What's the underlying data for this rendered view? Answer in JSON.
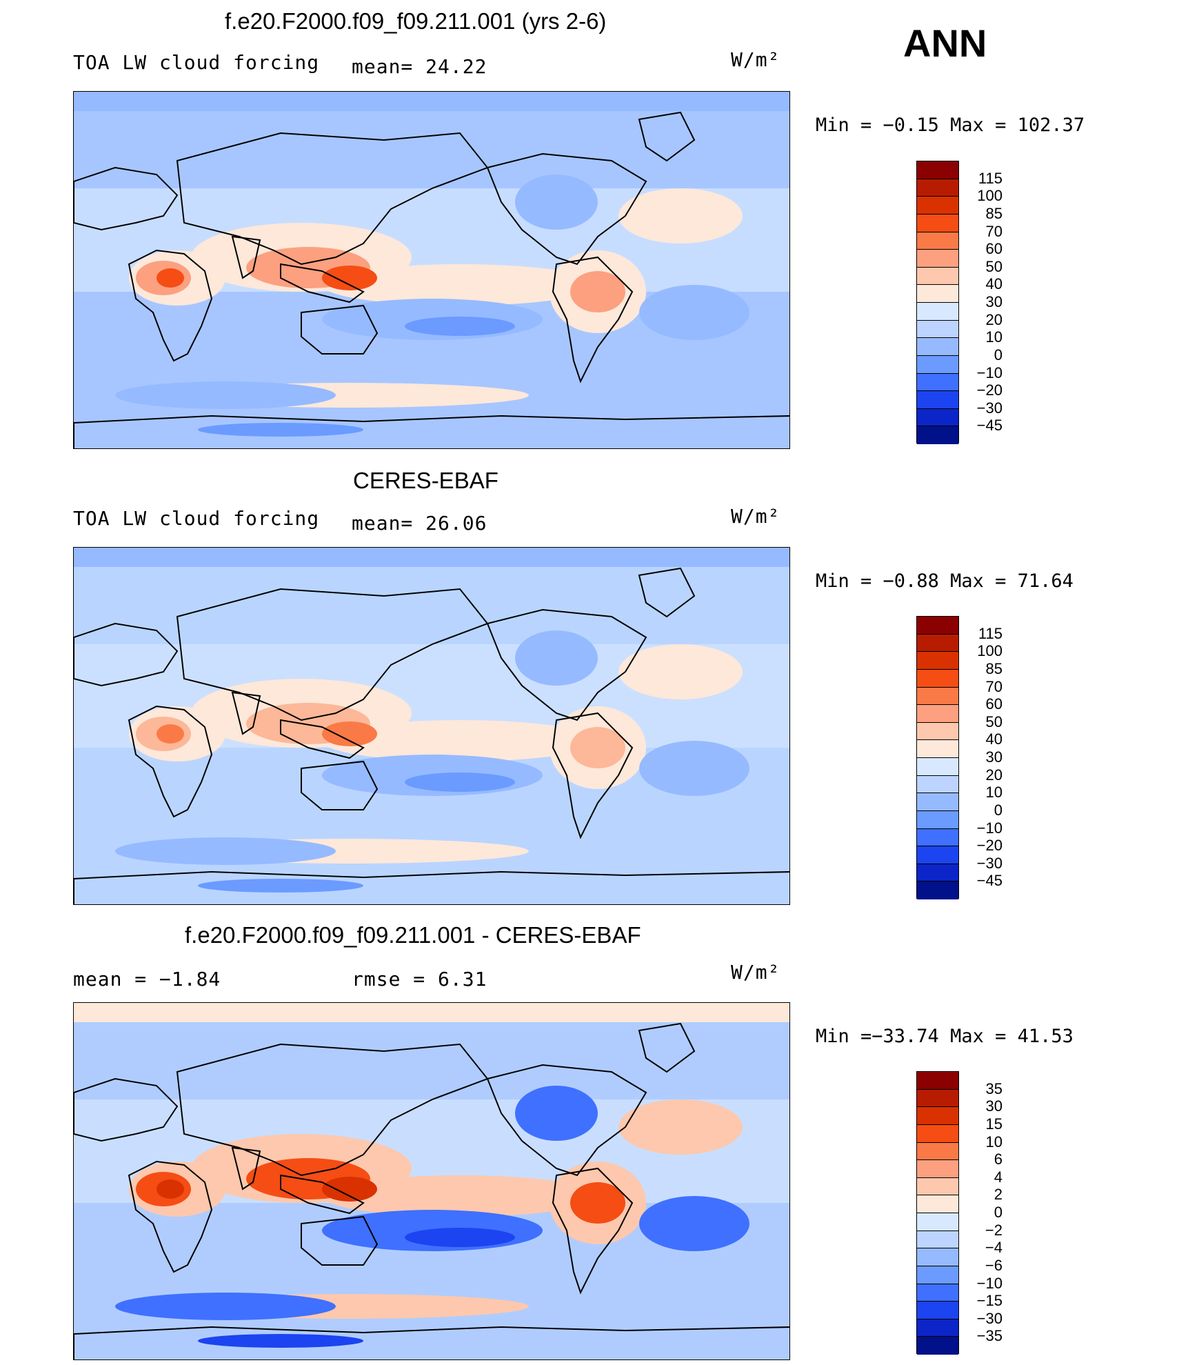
{
  "season": "ANN",
  "units": "W/m²",
  "panels": [
    {
      "title": "f.e20.F2000.f09_f09.211.001 (yrs 2-6)",
      "left_label": "TOA LW cloud forcing",
      "stat1": "mean=   24.22",
      "stat2": "",
      "units": "W/m²",
      "min_label": "Min  =",
      "min_value": "−0.15",
      "max_label": "Max  =",
      "max_value": "102.37",
      "colorbar_levels": [
        "115",
        "100",
        "85",
        "70",
        "60",
        "50",
        "40",
        "30",
        "20",
        "10",
        "0",
        "−10",
        "−20",
        "−30",
        "−45"
      ],
      "colorbar_colors": [
        "#8b0000",
        "#b81c00",
        "#d93200",
        "#f54d14",
        "#fa7a47",
        "#fca080",
        "#fdc8ad",
        "#fde8da",
        "#d8e9ff",
        "#bcd4ff",
        "#96baff",
        "#6b9bff",
        "#3f70ff",
        "#1c44f0",
        "#0b25c8",
        "#001189"
      ]
    },
    {
      "title": "CERES-EBAF",
      "left_label": "TOA LW cloud forcing",
      "stat1": "mean=   26.06",
      "stat2": "",
      "units": "W/m²",
      "min_label": "Min  =",
      "min_value": "−0.88",
      "max_label": "Max  =",
      "max_value": "71.64",
      "colorbar_levels": [
        "115",
        "100",
        "85",
        "70",
        "60",
        "50",
        "40",
        "30",
        "20",
        "10",
        "0",
        "−10",
        "−20",
        "−30",
        "−45"
      ],
      "colorbar_colors": [
        "#8b0000",
        "#b81c00",
        "#d93200",
        "#f54d14",
        "#fa7a47",
        "#fca080",
        "#fdc8ad",
        "#fde8da",
        "#d8e9ff",
        "#bcd4ff",
        "#96baff",
        "#6b9bff",
        "#3f70ff",
        "#1c44f0",
        "#0b25c8",
        "#001189"
      ]
    },
    {
      "title": "f.e20.F2000.f09_f09.211.001 - CERES-EBAF",
      "left_label": "mean  =   −1.84",
      "stat1": "rmse  =    6.31",
      "stat2": "",
      "units": "W/m²",
      "min_label": "Min  =",
      "min_value": "−33.74",
      "max_label": "Max  =",
      "max_value": "41.53",
      "colorbar_levels": [
        "35",
        "30",
        "15",
        "10",
        "6",
        "4",
        "2",
        "0",
        "−2",
        "−4",
        "−6",
        "−10",
        "−15",
        "−30",
        "−35"
      ],
      "colorbar_colors": [
        "#8b0000",
        "#b81c00",
        "#d93200",
        "#f54d14",
        "#fa7a47",
        "#fca080",
        "#fdc8ad",
        "#fde8da",
        "#d8e9ff",
        "#bcd4ff",
        "#96baff",
        "#6b9bff",
        "#3f70ff",
        "#1c44f0",
        "#0b25c8",
        "#001189"
      ]
    }
  ],
  "map_fills": {
    "bg": [
      "#a7c6ff",
      "#b9d5ff",
      "#b0ccff"
    ],
    "warm1": [
      "#fde8da",
      "#fde8da",
      "#fdc8ad"
    ],
    "warm2": [
      "#fca080",
      "#fcb898",
      "#f54d14"
    ],
    "warm3": [
      "#f54d14",
      "#fa7a47",
      "#d93200"
    ],
    "cool1": [
      "#96baff",
      "#96baff",
      "#3f70ff"
    ],
    "cool2": [
      "#6b9bff",
      "#6b9bff",
      "#1c44f0"
    ]
  }
}
